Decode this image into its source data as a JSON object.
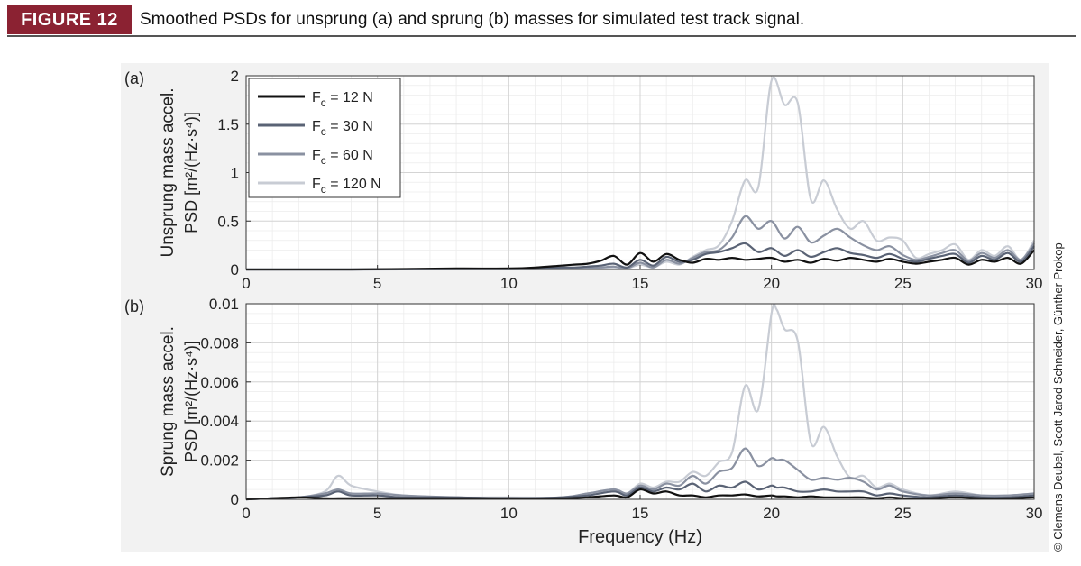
{
  "figure": {
    "label": "FIGURE 12",
    "caption": "Smoothed PSDs for unsprung (a) and sprung (b) masses for simulated test track signal.",
    "credit": "© Clemens Deubel, Scott Jarod Schneider, Günther Prokop"
  },
  "colors": {
    "label_bg": "#8b2232"
  },
  "chart_data": [
    {
      "type": "line",
      "panel_label": "(a)",
      "ylabel_line1": "Unsprung mass accel.",
      "ylabel_line2": "PSD [m²/(Hz·s⁴)]",
      "xlabel": "",
      "xlim": [
        0,
        30
      ],
      "ylim": [
        0,
        2
      ],
      "xticks": [
        0,
        5,
        10,
        15,
        20,
        25,
        30
      ],
      "yticks": [
        0,
        0.5,
        1,
        1.5,
        2
      ],
      "ytick_labels": [
        "0",
        "0.5",
        "1",
        "1.5",
        "2"
      ],
      "grid": true,
      "legend_position": "top-left",
      "x": [
        0,
        2,
        4,
        6,
        8,
        10,
        11,
        12,
        12.5,
        13,
        13.5,
        14,
        14.5,
        15,
        15.5,
        16,
        16.5,
        17,
        17.5,
        18,
        18.5,
        19,
        19.5,
        20,
        20.5,
        21,
        21.5,
        22,
        22.5,
        23,
        23.5,
        24,
        24.5,
        25,
        25.5,
        26,
        26.5,
        27,
        27.5,
        28,
        28.5,
        29,
        29.5,
        30
      ],
      "series": [
        {
          "name": "Fc = 12 N",
          "legend_main": "F",
          "legend_sub": "c",
          "legend_rest": " = 12 N",
          "color": "#111111",
          "width": 2.2,
          "values": [
            0,
            0,
            0,
            0.005,
            0.01,
            0.01,
            0.02,
            0.04,
            0.05,
            0.06,
            0.09,
            0.14,
            0.05,
            0.17,
            0.08,
            0.16,
            0.1,
            0.07,
            0.11,
            0.1,
            0.12,
            0.1,
            0.11,
            0.12,
            0.08,
            0.1,
            0.07,
            0.11,
            0.09,
            0.12,
            0.1,
            0.08,
            0.11,
            0.08,
            0.06,
            0.08,
            0.1,
            0.12,
            0.05,
            0.1,
            0.08,
            0.12,
            0.06,
            0.2
          ]
        },
        {
          "name": "Fc = 30 N",
          "legend_main": "F",
          "legend_sub": "c",
          "legend_rest": " = 30 N",
          "color": "#5a6375",
          "width": 2.2,
          "values": [
            0,
            0,
            0,
            0.002,
            0.005,
            0.005,
            0.01,
            0.02,
            0.02,
            0.03,
            0.04,
            0.06,
            0.02,
            0.1,
            0.04,
            0.13,
            0.08,
            0.1,
            0.16,
            0.18,
            0.22,
            0.27,
            0.18,
            0.22,
            0.14,
            0.2,
            0.13,
            0.18,
            0.22,
            0.17,
            0.15,
            0.12,
            0.16,
            0.11,
            0.08,
            0.11,
            0.14,
            0.16,
            0.07,
            0.14,
            0.1,
            0.17,
            0.08,
            0.24
          ]
        },
        {
          "name": "Fc = 60 N",
          "legend_main": "F",
          "legend_sub": "c",
          "legend_rest": " = 60 N",
          "color": "#8a91a1",
          "width": 2.2,
          "values": [
            0,
            0,
            0,
            0.001,
            0.003,
            0.003,
            0.005,
            0.01,
            0.01,
            0.015,
            0.02,
            0.03,
            0.01,
            0.07,
            0.02,
            0.1,
            0.06,
            0.12,
            0.18,
            0.2,
            0.33,
            0.55,
            0.42,
            0.5,
            0.32,
            0.44,
            0.28,
            0.35,
            0.42,
            0.33,
            0.25,
            0.2,
            0.24,
            0.15,
            0.1,
            0.13,
            0.17,
            0.2,
            0.09,
            0.17,
            0.12,
            0.2,
            0.1,
            0.27
          ]
        },
        {
          "name": "Fc = 120 N",
          "legend_main": "F",
          "legend_sub": "c",
          "legend_rest": " = 120 N",
          "color": "#c8ccd4",
          "width": 2.2,
          "values": [
            0,
            0,
            0,
            0.001,
            0.002,
            0.002,
            0.003,
            0.005,
            0.008,
            0.01,
            0.015,
            0.02,
            0.01,
            0.05,
            0.02,
            0.08,
            0.05,
            0.13,
            0.2,
            0.25,
            0.5,
            0.92,
            0.85,
            1.95,
            1.7,
            1.72,
            0.72,
            0.92,
            0.62,
            0.42,
            0.5,
            0.3,
            0.33,
            0.3,
            0.12,
            0.16,
            0.2,
            0.26,
            0.1,
            0.2,
            0.14,
            0.24,
            0.1,
            0.3
          ]
        }
      ]
    },
    {
      "type": "line",
      "panel_label": "(b)",
      "ylabel_line1": "Sprung mass accel.",
      "ylabel_line2": "PSD [m²/(Hz·s⁴)]",
      "xlabel": "Frequency (Hz)",
      "xlim": [
        0,
        30
      ],
      "ylim": [
        0,
        0.01
      ],
      "xticks": [
        0,
        5,
        10,
        15,
        20,
        25,
        30
      ],
      "yticks": [
        0,
        0.002,
        0.004,
        0.006,
        0.008,
        0.01
      ],
      "ytick_labels": [
        "0",
        "0.002",
        "0.004",
        "0.006",
        "0.008",
        "0.01"
      ],
      "grid": true,
      "x": [
        0,
        1,
        2,
        3,
        3.5,
        4,
        5,
        6,
        8,
        10,
        12,
        13,
        14,
        14.5,
        15,
        15.5,
        16,
        16.5,
        17,
        17.5,
        18,
        18.5,
        19,
        19.5,
        20,
        20.2,
        20.5,
        21,
        21.5,
        22,
        22.5,
        23,
        23.5,
        24,
        24.5,
        25,
        26,
        27,
        28,
        29,
        30
      ],
      "series": [
        {
          "name": "Fc = 12 N",
          "color": "#111111",
          "width": 2.2,
          "values": [
            0,
            5e-05,
            0.0001,
            5e-05,
            5e-05,
            5e-05,
            5e-05,
            5e-05,
            5e-05,
            5e-05,
            5e-05,
            0.0001,
            0.0002,
            0.0001,
            0.0005,
            0.0003,
            0.0004,
            0.0002,
            0.0002,
            0.0001,
            0.0002,
            0.0002,
            0.00025,
            0.00015,
            0.0002,
            0.00015,
            0.00015,
            0.0001,
            0.00015,
            0.0001,
            0.0001,
            0.0001,
            0.0001,
            5e-05,
            0.0001,
            5e-05,
            5e-05,
            0.0001,
            5e-05,
            5e-05,
            0.0001
          ]
        },
        {
          "name": "Fc = 30 N",
          "color": "#5a6375",
          "width": 2.2,
          "values": [
            0,
            5e-05,
            0.0001,
            0.0002,
            0.0004,
            0.0002,
            0.0002,
            0.0001,
            0.0001,
            5e-05,
            0.0001,
            0.0002,
            0.0004,
            0.0002,
            0.0006,
            0.0004,
            0.0006,
            0.0005,
            0.0008,
            0.0004,
            0.0007,
            0.0006,
            0.0009,
            0.0005,
            0.0007,
            0.0006,
            0.0006,
            0.0004,
            0.0004,
            0.0005,
            0.0004,
            0.0004,
            0.0004,
            0.0002,
            0.0003,
            0.0002,
            0.0001,
            0.0002,
            0.0001,
            0.0001,
            0.0002
          ]
        },
        {
          "name": "Fc = 60 N",
          "color": "#8a91a1",
          "width": 2.2,
          "values": [
            0,
            5e-05,
            0.0001,
            0.0003,
            0.0005,
            0.0003,
            0.0003,
            0.0002,
            0.0001,
            5e-05,
            0.0001,
            0.0003,
            0.0005,
            0.0003,
            0.0007,
            0.0005,
            0.0008,
            0.0007,
            0.0012,
            0.0008,
            0.0014,
            0.0016,
            0.0026,
            0.0017,
            0.0021,
            0.002,
            0.002,
            0.0015,
            0.001,
            0.0011,
            0.001,
            0.0011,
            0.0009,
            0.0005,
            0.0007,
            0.0004,
            0.0002,
            0.0003,
            0.0002,
            0.0002,
            0.0003
          ]
        },
        {
          "name": "Fc = 120 N",
          "color": "#c8ccd4",
          "width": 2.2,
          "values": [
            0,
            5e-05,
            0.0001,
            0.0004,
            0.0012,
            0.0007,
            0.0004,
            0.0002,
            0.0001,
            0.0001,
            0.0001,
            0.0003,
            0.0005,
            0.0003,
            0.0008,
            0.0006,
            0.0009,
            0.0009,
            0.0014,
            0.0012,
            0.0019,
            0.0024,
            0.0058,
            0.0046,
            0.0095,
            0.0097,
            0.0087,
            0.0081,
            0.0029,
            0.0037,
            0.0022,
            0.0011,
            0.0012,
            0.0006,
            0.0008,
            0.0005,
            0.0002,
            0.0004,
            0.0002,
            0.0002,
            0.0003
          ]
        }
      ]
    }
  ]
}
